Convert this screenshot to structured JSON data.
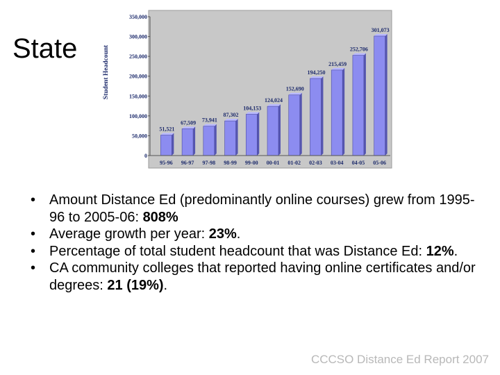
{
  "slide": {
    "title": "State",
    "bullets": [
      {
        "before": "Amount Distance Ed (predominantly online courses) grew from 1995-96 to 2005-06: ",
        "bold": "808%",
        "after": ""
      },
      {
        "before": "Average growth per year: ",
        "bold": "23%",
        "after": "."
      },
      {
        "before": "Percentage of total student headcount that was Distance Ed: ",
        "bold": "12%",
        "after": "."
      },
      {
        "before": "CA community colleges that reported having online certificates and/or degrees: ",
        "bold": "21 (19%)",
        "after": "."
      }
    ],
    "bullet_glyph": "•",
    "footer": "CCCSO Distance Ed Report 2007"
  },
  "chart_data": {
    "type": "bar",
    "categories": [
      "95-96",
      "96-97",
      "97-98",
      "98-99",
      "99-00",
      "00-01",
      "01-02",
      "02-03",
      "03-04",
      "04-05",
      "05-06"
    ],
    "values": [
      51521,
      67509,
      73941,
      87302,
      104153,
      124024,
      152690,
      194250,
      215459,
      252706,
      301073
    ],
    "data_labels": [
      "51,521",
      "67,509",
      "73,941",
      "87,302",
      "104,153",
      "124,024",
      "152,690",
      "194,250",
      "215,459",
      "252,706",
      "301,073"
    ],
    "ylabel": "Student Headcount",
    "ylim": [
      0,
      350000
    ],
    "yticks": [
      0,
      50000,
      100000,
      150000,
      200000,
      250000,
      300000,
      350000
    ],
    "ytick_labels": [
      "0",
      "50,000",
      "100,000",
      "150,000",
      "200,000",
      "250,000",
      "300,000",
      "350,000"
    ],
    "grid": false,
    "colors": {
      "bar": "#8c8cf0",
      "bar_side": "#5555b0",
      "plot_bg": "#c8c8c8",
      "frame": "#9a9a9a",
      "text": "#1c2a6b"
    }
  }
}
